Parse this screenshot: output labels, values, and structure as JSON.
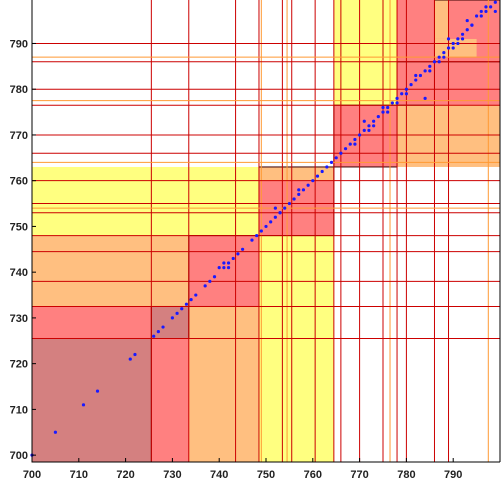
{
  "chart_data": {
    "type": "scatter",
    "title": "",
    "xlabel": "",
    "ylabel": "",
    "xlim": [
      700,
      800
    ],
    "ylim": [
      698.5,
      799.5
    ],
    "grid": false,
    "x_ticks": [
      700,
      710,
      720,
      730,
      740,
      750,
      760,
      770,
      780,
      790
    ],
    "y_ticks": [
      700,
      710,
      720,
      730,
      740,
      750,
      760,
      770,
      780,
      790
    ],
    "colors": {
      "yellow": "#ffff80",
      "orange": "#ffbf80",
      "red": "#ff8080",
      "dark": "#d48080",
      "line_red": "#cc0000",
      "line_orange": "#ff9933",
      "point": "#1a1aff"
    },
    "regions": [
      {
        "x0": 700,
        "x1": 725.5,
        "y0": 698.5,
        "y1": 725.5,
        "fill": "dark"
      },
      {
        "x0": 725.5,
        "x1": 733.5,
        "y0": 698.5,
        "y1": 725.5,
        "fill": "red"
      },
      {
        "x0": 700,
        "x1": 725.5,
        "y0": 725.5,
        "y1": 732.5,
        "fill": "red"
      },
      {
        "x0": 725.5,
        "x1": 733.5,
        "y0": 725.5,
        "y1": 732.5,
        "fill": "dark"
      },
      {
        "x0": 733.5,
        "x1": 748.5,
        "y0": 698.5,
        "y1": 732.5,
        "fill": "orange"
      },
      {
        "x0": 700,
        "x1": 733.5,
        "y0": 732.5,
        "y1": 748,
        "fill": "orange"
      },
      {
        "x0": 733.5,
        "x1": 748.5,
        "y0": 732.5,
        "y1": 748,
        "fill": "red"
      },
      {
        "x0": 748.5,
        "x1": 764.5,
        "y0": 698.5,
        "y1": 748,
        "fill": "yellow"
      },
      {
        "x0": 700,
        "x1": 748.5,
        "y0": 748,
        "y1": 763,
        "fill": "yellow"
      },
      {
        "x0": 748.5,
        "x1": 764.5,
        "y0": 748,
        "y1": 763,
        "fill": "orange"
      },
      {
        "x0": 748.5,
        "x1": 764.5,
        "y0": 748,
        "y1": 760,
        "fill": "red"
      },
      {
        "x0": 764.5,
        "x1": 778,
        "y0": 763,
        "y1": 799.5,
        "fill": "yellow"
      },
      {
        "x0": 778,
        "x1": 800,
        "y0": 763,
        "y1": 799.5,
        "fill": "orange"
      },
      {
        "x0": 764.5,
        "x1": 778,
        "y0": 763,
        "y1": 776.5,
        "fill": "orange"
      },
      {
        "x0": 764.5,
        "x1": 778,
        "y0": 763,
        "y1": 776.5,
        "fill": "red"
      },
      {
        "x0": 778,
        "x1": 800,
        "y0": 776.5,
        "y1": 799.5,
        "fill": "red"
      },
      {
        "x0": 786,
        "x1": 789,
        "y0": 791,
        "y1": 799.5,
        "fill": "orange"
      },
      {
        "x0": 786,
        "x1": 795,
        "y0": 787,
        "y1": 791,
        "fill": "orange"
      },
      {
        "x0": 778,
        "x1": 786,
        "y0": 776.5,
        "y1": 786,
        "fill": "red"
      },
      {
        "x0": 789,
        "x1": 800,
        "y0": 791,
        "y1": 799.5,
        "fill": "red"
      },
      {
        "x0": 800,
        "x1": 800,
        "y0": 790,
        "y1": 790,
        "fill": "yellow"
      }
    ],
    "outlined_blocks": [
      {
        "x0": 700,
        "x1": 725.5,
        "y0": 698.5,
        "y1": 725.5
      },
      {
        "x0": 725.5,
        "x1": 733.5,
        "y0": 725.5,
        "y1": 732.5
      },
      {
        "x0": 733.5,
        "x1": 748.5,
        "y0": 732.5,
        "y1": 748
      },
      {
        "x0": 748.5,
        "x1": 764.5,
        "y0": 748,
        "y1": 763
      },
      {
        "x0": 764.5,
        "x1": 778,
        "y0": 763,
        "y1": 776.5
      },
      {
        "x0": 778,
        "x1": 786,
        "y0": 776.5,
        "y1": 786
      },
      {
        "x0": 786,
        "x1": 800,
        "y0": 786,
        "y1": 799.5
      }
    ],
    "red_vlines": [
      725.5,
      733.5,
      743.5,
      748.5,
      753.5,
      755.5,
      760.5,
      764.5,
      766,
      770,
      775,
      778,
      780,
      786,
      789
    ],
    "orange_vlines": [
      749,
      754.5,
      776.5,
      797.5
    ],
    "red_hlines": [
      725.5,
      732.5,
      738,
      744.5,
      748,
      753,
      755,
      760,
      766,
      770,
      776.5,
      780,
      786,
      790
    ],
    "orange_hlines": [
      754,
      764,
      777.5,
      787
    ],
    "points": [
      [
        700,
        700
      ],
      [
        705,
        705
      ],
      [
        711,
        711
      ],
      [
        714,
        714
      ],
      [
        721,
        721
      ],
      [
        722,
        722
      ],
      [
        726,
        726
      ],
      [
        727,
        727
      ],
      [
        728,
        728
      ],
      [
        730,
        730
      ],
      [
        731,
        731
      ],
      [
        732,
        732
      ],
      [
        733,
        733
      ],
      [
        734,
        734
      ],
      [
        735,
        735
      ],
      [
        737,
        737
      ],
      [
        738,
        738
      ],
      [
        739,
        739
      ],
      [
        741,
        741
      ],
      [
        742,
        742
      ],
      [
        743,
        743
      ],
      [
        744,
        744
      ],
      [
        745,
        745
      ],
      [
        747,
        747
      ],
      [
        748,
        748
      ],
      [
        749,
        749
      ],
      [
        750,
        750
      ],
      [
        751,
        751
      ],
      [
        752,
        752
      ],
      [
        753,
        753
      ],
      [
        754,
        754
      ],
      [
        755,
        755
      ],
      [
        756,
        756
      ],
      [
        757,
        757
      ],
      [
        758,
        758
      ],
      [
        759,
        759
      ],
      [
        760,
        760
      ],
      [
        761,
        761
      ],
      [
        762,
        762
      ],
      [
        763,
        763
      ],
      [
        764,
        764
      ],
      [
        765,
        765
      ],
      [
        766,
        766
      ],
      [
        767,
        767
      ],
      [
        768,
        768
      ],
      [
        769,
        769
      ],
      [
        770,
        770
      ],
      [
        771,
        771
      ],
      [
        772,
        772
      ],
      [
        773,
        773
      ],
      [
        774,
        774
      ],
      [
        775,
        775
      ],
      [
        776,
        776
      ],
      [
        777,
        777
      ],
      [
        778,
        778
      ],
      [
        779,
        779
      ],
      [
        780,
        780
      ],
      [
        781,
        781
      ],
      [
        782,
        782
      ],
      [
        783,
        783
      ],
      [
        784,
        784
      ],
      [
        785,
        785
      ],
      [
        786,
        786
      ],
      [
        787,
        787
      ],
      [
        788,
        788
      ],
      [
        789,
        789
      ],
      [
        790,
        790
      ],
      [
        791,
        791
      ],
      [
        792,
        792
      ],
      [
        793,
        793
      ],
      [
        794,
        794
      ],
      [
        796,
        796
      ],
      [
        797,
        797
      ],
      [
        798,
        798
      ],
      [
        799,
        799
      ],
      [
        741,
        742
      ],
      [
        740,
        741
      ],
      [
        742,
        741
      ],
      [
        752,
        754
      ],
      [
        753,
        753
      ],
      [
        757,
        758
      ],
      [
        769,
        768
      ],
      [
        771,
        773
      ],
      [
        772,
        771
      ],
      [
        773,
        772
      ],
      [
        775,
        776
      ],
      [
        776,
        775
      ],
      [
        778,
        777
      ],
      [
        780,
        779
      ],
      [
        782,
        783
      ],
      [
        784,
        778
      ],
      [
        785,
        784
      ],
      [
        787,
        786
      ],
      [
        788,
        787
      ],
      [
        789,
        791
      ],
      [
        790,
        789
      ],
      [
        791,
        790
      ],
      [
        792,
        791
      ],
      [
        793,
        795
      ],
      [
        794,
        794
      ],
      [
        795,
        796
      ],
      [
        796,
        797
      ],
      [
        797,
        798
      ],
      [
        799,
        797
      ]
    ]
  }
}
